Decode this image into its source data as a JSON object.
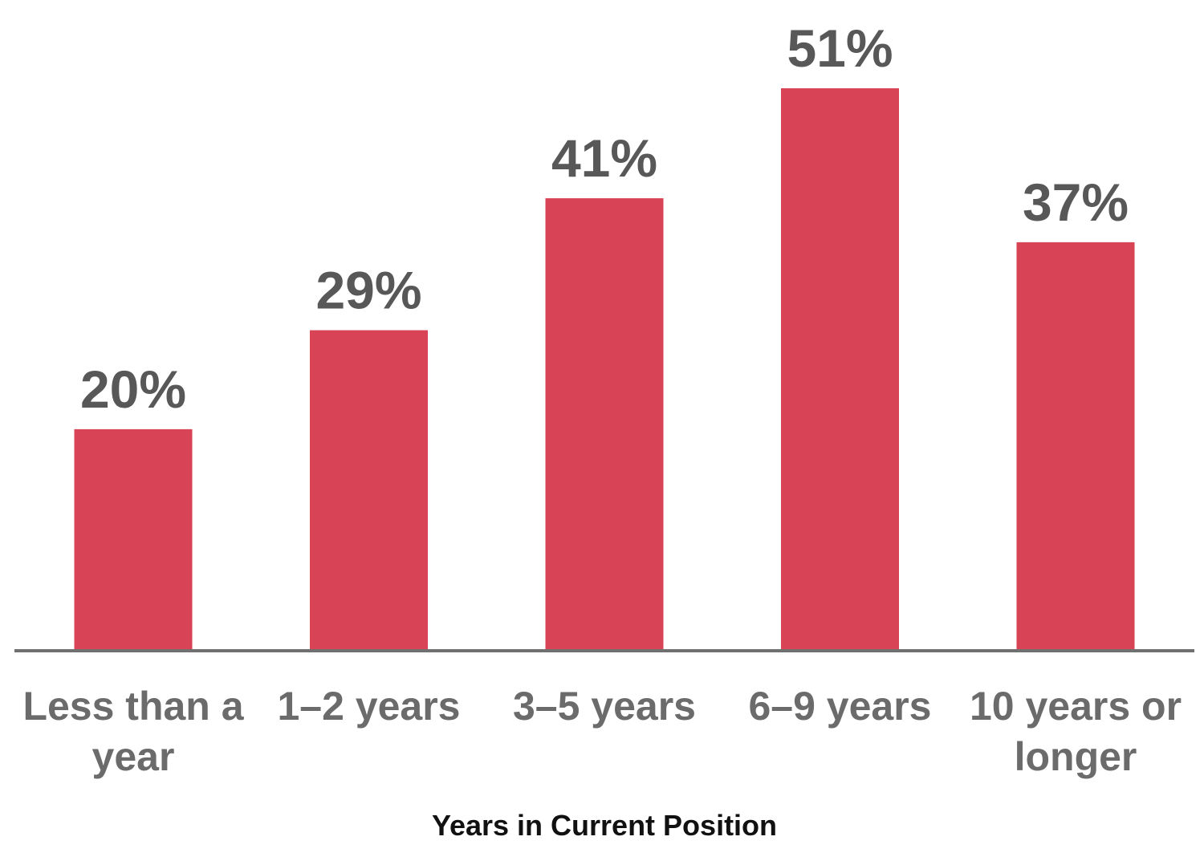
{
  "chart_data": {
    "type": "bar",
    "categories": [
      "Less than a year",
      "1–2 years",
      "3–5 years",
      "6–9 years",
      "10 years or longer"
    ],
    "category_lines": [
      [
        "Less than a",
        "year"
      ],
      [
        "1–2 years"
      ],
      [
        "3–5 years"
      ],
      [
        "6–9 years"
      ],
      [
        "10 years or",
        "longer"
      ]
    ],
    "values": [
      20,
      29,
      41,
      51,
      37
    ],
    "value_labels": [
      "20%",
      "29%",
      "41%",
      "51%",
      "37%"
    ],
    "xlabel": "Years in Current Position",
    "ylabel": "",
    "ylim": [
      0,
      51
    ],
    "grid": false,
    "legend": "none",
    "bar_color": "#d84356",
    "axis_color": "#707070",
    "label_color": "#585858"
  }
}
